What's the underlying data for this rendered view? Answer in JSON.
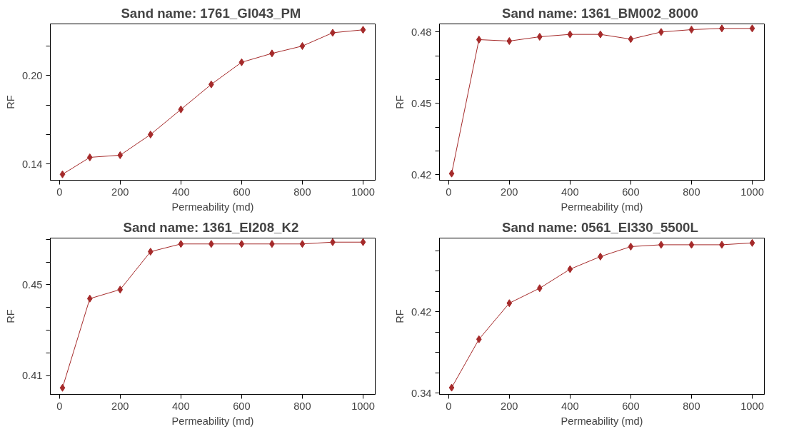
{
  "chart_data": [
    {
      "type": "line",
      "title": "Sand name:  1761_GI043_PM",
      "xlabel": "Permeability (md)",
      "ylabel": "RF",
      "marker": "diamond",
      "line_style": "solid",
      "grid": false,
      "x": [
        10,
        100,
        200,
        300,
        400,
        500,
        600,
        700,
        800,
        900,
        1000
      ],
      "series": [
        {
          "color": "#a52a2a",
          "values": [
            0.133,
            0.1445,
            0.146,
            0.16,
            0.177,
            0.194,
            0.209,
            0.215,
            0.22,
            0.229,
            0.231
          ]
        }
      ],
      "xlim": [
        -30,
        1040
      ],
      "ylim": [
        0.129,
        0.235
      ],
      "xticks": [
        0,
        200,
        400,
        600,
        800,
        1000
      ],
      "yticks": [
        0.14,
        {
          "value": 0.16,
          "label": null
        },
        {
          "value": 0.18,
          "label": null
        },
        {
          "value": 0.2,
          "label": "0.20"
        },
        {
          "value": 0.22,
          "label": null
        }
      ]
    },
    {
      "type": "line",
      "title": "Sand name:  1361_BM002_8000",
      "xlabel": "Permeability (md)",
      "ylabel": "RF",
      "marker": "diamond",
      "line_style": "solid",
      "grid": false,
      "x": [
        10,
        100,
        200,
        300,
        400,
        500,
        600,
        700,
        800,
        900,
        1000
      ],
      "series": [
        {
          "color": "#a52a2a",
          "values": [
            0.4205,
            0.4768,
            0.4762,
            0.478,
            0.479,
            0.479,
            0.477,
            0.48,
            0.481,
            0.4815,
            0.4815
          ]
        }
      ],
      "xlim": [
        -30,
        1040
      ],
      "ylim": [
        0.4177,
        0.4834
      ],
      "xticks": [
        0,
        200,
        400,
        600,
        800,
        1000
      ],
      "yticks": [
        0.42,
        {
          "value": 0.43,
          "label": null
        },
        {
          "value": 0.44,
          "label": null
        },
        0.45,
        {
          "value": 0.46,
          "label": null
        },
        {
          "value": 0.47,
          "label": null
        },
        0.48
      ]
    },
    {
      "type": "line",
      "title": "Sand name:  1361_EI208_K2",
      "xlabel": "Permeability (md)",
      "ylabel": "RF",
      "marker": "diamond",
      "line_style": "solid",
      "grid": false,
      "x": [
        10,
        100,
        200,
        300,
        400,
        500,
        600,
        700,
        800,
        900,
        1000
      ],
      "series": [
        {
          "color": "#a52a2a",
          "values": [
            0.4046,
            0.4439,
            0.4479,
            0.4646,
            0.468,
            0.468,
            0.468,
            0.468,
            0.468,
            0.4688,
            0.4688
          ]
        }
      ],
      "xlim": [
        -30,
        1040
      ],
      "ylim": [
        0.4017,
        0.4706
      ],
      "xticks": [
        0,
        200,
        400,
        600,
        800,
        1000
      ],
      "yticks": [
        0.41,
        {
          "value": 0.42,
          "label": null
        },
        {
          "value": 0.43,
          "label": null
        },
        {
          "value": 0.44,
          "label": null
        },
        0.45,
        {
          "value": 0.46,
          "label": null
        },
        {
          "value": 0.47,
          "label": null
        }
      ]
    },
    {
      "type": "line",
      "title": "Sand name:  0561_EI330_5500L",
      "xlabel": "Permeability (md)",
      "ylabel": "RF",
      "marker": "diamond",
      "line_style": "solid",
      "grid": false,
      "x": [
        10,
        100,
        200,
        300,
        400,
        500,
        600,
        700,
        800,
        900,
        1000
      ],
      "series": [
        {
          "color": "#a52a2a",
          "values": [
            0.3453,
            0.3929,
            0.4284,
            0.4431,
            0.4618,
            0.4742,
            0.484,
            0.4858,
            0.4858,
            0.4858,
            0.4876
          ]
        }
      ],
      "xlim": [
        -30,
        1040
      ],
      "ylim": [
        0.3387,
        0.4924
      ],
      "xticks": [
        0,
        200,
        400,
        600,
        800,
        1000
      ],
      "yticks": [
        0.34,
        {
          "value": 0.36,
          "label": null
        },
        {
          "value": 0.38,
          "label": null
        },
        {
          "value": 0.4,
          "label": null
        },
        0.42,
        {
          "value": 0.44,
          "label": null
        },
        {
          "value": 0.46,
          "label": null
        },
        {
          "value": 0.48,
          "label": null
        }
      ]
    }
  ]
}
